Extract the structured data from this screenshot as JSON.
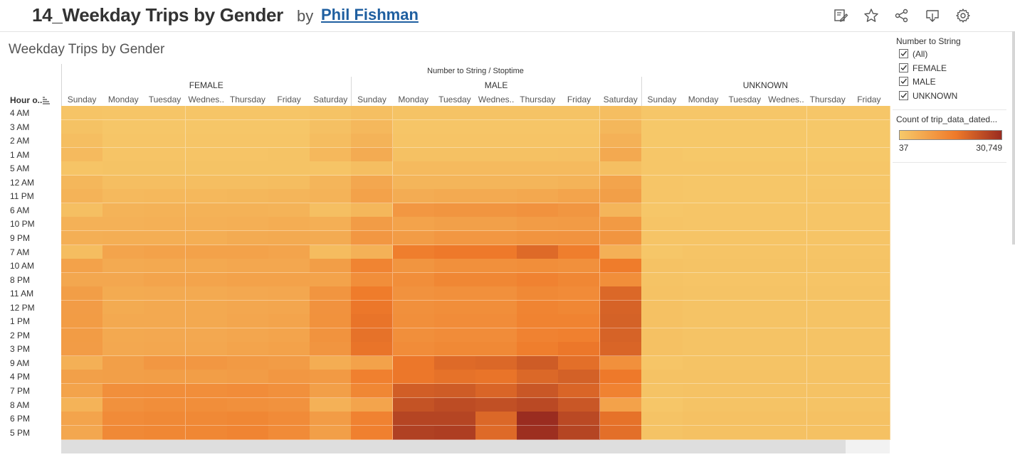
{
  "header": {
    "title": "14_Weekday Trips by Gender",
    "by": "by",
    "author": "Phil Fishman"
  },
  "toolbar": {
    "icons": [
      "edit-icon",
      "star-icon",
      "share-icon",
      "download-icon",
      "settings-icon"
    ]
  },
  "sheet": {
    "title": "Weekday Trips by Gender",
    "column_header": "Number to String / Stoptime",
    "row_header": "Hour o..",
    "groups": [
      "FEMALE",
      "MALE",
      "UNKNOWN"
    ],
    "days": [
      "Sunday",
      "Monday",
      "Tuesday",
      "Wednes..",
      "Thursday",
      "Friday",
      "Saturday"
    ],
    "unknown_days": [
      "Sunday",
      "Monday",
      "Tuesday",
      "Wednes..",
      "Thursday",
      "Friday"
    ]
  },
  "filter": {
    "title": "Number to String",
    "items": [
      {
        "label": "(All)",
        "checked": true
      },
      {
        "label": "FEMALE",
        "checked": true
      },
      {
        "label": "MALE",
        "checked": true
      },
      {
        "label": "UNKNOWN",
        "checked": true
      }
    ]
  },
  "color_legend": {
    "title": "Count of trip_data_dated...",
    "min": "37",
    "max": "30,749",
    "colors": [
      "#f6c96a",
      "#ef7a2a",
      "#9a2c20"
    ]
  },
  "chart_data": {
    "type": "heatmap",
    "title": "Weekday Trips by Gender",
    "xlabel": "Number to String / Stoptime",
    "ylabel": "Hour o..",
    "rows": [
      "4 AM",
      "3 AM",
      "2 AM",
      "1 AM",
      "5 AM",
      "12 AM",
      "11 PM",
      "6 AM",
      "10 PM",
      "9 PM",
      "7 AM",
      "10 AM",
      "8 PM",
      "11 AM",
      "12 PM",
      "1 PM",
      "2 PM",
      "3 PM",
      "9 AM",
      "4 PM",
      "7 PM",
      "8 AM",
      "6 PM",
      "5 PM"
    ],
    "columns": [
      {
        "group": "FEMALE",
        "day": "Sunday"
      },
      {
        "group": "FEMALE",
        "day": "Monday"
      },
      {
        "group": "FEMALE",
        "day": "Tuesday"
      },
      {
        "group": "FEMALE",
        "day": "Wednes.."
      },
      {
        "group": "FEMALE",
        "day": "Thursday"
      },
      {
        "group": "FEMALE",
        "day": "Friday"
      },
      {
        "group": "FEMALE",
        "day": "Saturday"
      },
      {
        "group": "MALE",
        "day": "Sunday"
      },
      {
        "group": "MALE",
        "day": "Monday"
      },
      {
        "group": "MALE",
        "day": "Tuesday"
      },
      {
        "group": "MALE",
        "day": "Wednes.."
      },
      {
        "group": "MALE",
        "day": "Thursday"
      },
      {
        "group": "MALE",
        "day": "Friday"
      },
      {
        "group": "MALE",
        "day": "Saturday"
      },
      {
        "group": "UNKNOWN",
        "day": "Sunday"
      },
      {
        "group": "UNKNOWN",
        "day": "Monday"
      },
      {
        "group": "UNKNOWN",
        "day": "Tuesday"
      },
      {
        "group": "UNKNOWN",
        "day": "Wednes.."
      },
      {
        "group": "UNKNOWN",
        "day": "Thursday"
      },
      {
        "group": "UNKNOWN",
        "day": "Friday"
      }
    ],
    "color_range": [
      37,
      30749
    ],
    "values": [
      [
        400,
        300,
        300,
        300,
        300,
        300,
        500,
        900,
        500,
        500,
        500,
        500,
        500,
        1000,
        200,
        200,
        200,
        200,
        200,
        200
      ],
      [
        600,
        200,
        200,
        200,
        200,
        200,
        800,
        1800,
        300,
        300,
        300,
        300,
        300,
        2000,
        100,
        100,
        100,
        100,
        100,
        100
      ],
      [
        1000,
        300,
        300,
        300,
        300,
        300,
        1200,
        2500,
        400,
        400,
        400,
        400,
        400,
        2800,
        100,
        100,
        100,
        100,
        100,
        100
      ],
      [
        1500,
        400,
        400,
        400,
        400,
        500,
        1800,
        3800,
        700,
        700,
        700,
        700,
        800,
        4200,
        200,
        100,
        100,
        100,
        100,
        100
      ],
      [
        400,
        500,
        500,
        500,
        500,
        500,
        400,
        1000,
        1500,
        1500,
        1500,
        1500,
        1500,
        900,
        200,
        200,
        200,
        200,
        200,
        200
      ],
      [
        2000,
        1000,
        1000,
        1000,
        1000,
        1200,
        2200,
        4500,
        2200,
        2200,
        2200,
        2300,
        2600,
        5000,
        300,
        200,
        200,
        200,
        200,
        200
      ],
      [
        2500,
        1700,
        1800,
        1800,
        2000,
        2300,
        2600,
        5500,
        3600,
        4000,
        4000,
        4400,
        5000,
        6000,
        300,
        200,
        200,
        200,
        300,
        300
      ],
      [
        900,
        2500,
        2700,
        2700,
        2700,
        2500,
        900,
        2000,
        7500,
        8000,
        8000,
        8500,
        7800,
        2200,
        200,
        300,
        300,
        300,
        300,
        300
      ],
      [
        2800,
        2800,
        3000,
        3000,
        3200,
        3500,
        3200,
        6500,
        5200,
        5800,
        5800,
        6500,
        6800,
        7000,
        400,
        300,
        300,
        300,
        300,
        300
      ],
      [
        3200,
        3300,
        3400,
        3400,
        3800,
        4000,
        3800,
        7500,
        6500,
        7500,
        7500,
        8200,
        8300,
        8000,
        400,
        400,
        400,
        400,
        400,
        400
      ],
      [
        1200,
        5000,
        5500,
        5500,
        5500,
        5000,
        1300,
        2800,
        13000,
        14000,
        14000,
        17000,
        13000,
        3000,
        200,
        400,
        400,
        400,
        400,
        400
      ],
      [
        5500,
        4000,
        4200,
        4200,
        4500,
        4500,
        6200,
        11500,
        8000,
        9000,
        9000,
        9500,
        9000,
        13500,
        600,
        500,
        500,
        500,
        500,
        500
      ],
      [
        4500,
        4500,
        5000,
        5000,
        5500,
        5500,
        5300,
        9500,
        9500,
        11000,
        11000,
        12000,
        11000,
        9500,
        500,
        400,
        400,
        400,
        400,
        400
      ],
      [
        6200,
        3900,
        4000,
        4000,
        4300,
        4500,
        8000,
        13500,
        8500,
        9000,
        9000,
        10500,
        10000,
        17500,
        600,
        500,
        500,
        500,
        500,
        500
      ],
      [
        6500,
        3900,
        4100,
        4100,
        4500,
        4700,
        8500,
        14500,
        9000,
        9500,
        9500,
        11500,
        11000,
        18500,
        700,
        500,
        500,
        500,
        500,
        500
      ],
      [
        6600,
        4100,
        4200,
        4200,
        4700,
        5000,
        8600,
        15000,
        9200,
        9800,
        9800,
        11800,
        11800,
        18800,
        700,
        500,
        500,
        500,
        500,
        500
      ],
      [
        6600,
        4100,
        4300,
        4300,
        4700,
        5100,
        8400,
        15500,
        9200,
        9800,
        9800,
        12000,
        12500,
        18500,
        700,
        500,
        500,
        500,
        500,
        500
      ],
      [
        6500,
        4300,
        4500,
        4500,
        5000,
        5500,
        8000,
        15000,
        9800,
        10500,
        10500,
        13000,
        14500,
        18000,
        700,
        500,
        500,
        500,
        500,
        500
      ],
      [
        3000,
        6000,
        7500,
        7500,
        7000,
        6500,
        3500,
        5500,
        14500,
        17000,
        17500,
        20000,
        16000,
        9000,
        300,
        500,
        500,
        500,
        500,
        500
      ],
      [
        5800,
        6000,
        6200,
        6200,
        6500,
        7500,
        7000,
        12500,
        14500,
        15500,
        15000,
        17500,
        19000,
        14000,
        600,
        600,
        600,
        600,
        600,
        600
      ],
      [
        5200,
        9200,
        9500,
        9500,
        9800,
        9000,
        6000,
        11000,
        19500,
        20000,
        18000,
        21000,
        18000,
        12000,
        500,
        600,
        600,
        600,
        600,
        600
      ],
      [
        2500,
        8800,
        9500,
        9500,
        9000,
        8500,
        2800,
        5000,
        22000,
        23500,
        22500,
        24000,
        21000,
        5500,
        200,
        500,
        500,
        500,
        500,
        500
      ],
      [
        5000,
        10000,
        10500,
        10500,
        11000,
        10000,
        6500,
        12000,
        25000,
        25000,
        17500,
        30749,
        24000,
        15500,
        500,
        700,
        700,
        700,
        700,
        700
      ],
      [
        4500,
        10500,
        11000,
        11000,
        11500,
        10000,
        6000,
        12500,
        26000,
        26500,
        17000,
        30000,
        25000,
        16000,
        500,
        700,
        700,
        700,
        700,
        700
      ]
    ]
  }
}
